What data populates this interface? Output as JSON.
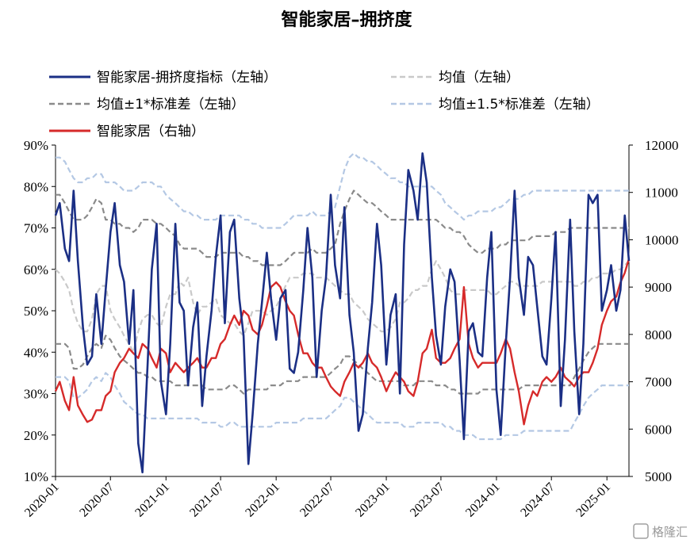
{
  "chart_data": {
    "type": "line",
    "title": "智能家居–拥挤度",
    "y_left": {
      "ticks": [
        "10%",
        "20%",
        "30%",
        "40%",
        "50%",
        "60%",
        "70%",
        "80%",
        "90%"
      ],
      "range": [
        0.1,
        0.9
      ]
    },
    "y_right": {
      "ticks": [
        "5000",
        "6000",
        "7000",
        "8000",
        "9000",
        "10000",
        "11000",
        "12000"
      ],
      "range": [
        5000,
        12000
      ]
    },
    "x_ticks": [
      "2020-01",
      "2020-07",
      "2021-01",
      "2021-07",
      "2022-01",
      "2022-07",
      "2023-01",
      "2023-07",
      "2024-01",
      "2024-07",
      "2025-01"
    ],
    "x_range": [
      "2020-01-01",
      "2025-03-15"
    ],
    "grid": false,
    "legend_position": "top",
    "series": [
      {
        "name": "智能家居-拥挤度指标（左轴）",
        "axis": "left",
        "color": "#1b2f85",
        "style": "solid",
        "x": [
          "2020-01-01",
          "2020-01-15",
          "2020-02-01",
          "2020-02-15",
          "2020-03-01",
          "2020-03-15",
          "2020-04-01",
          "2020-04-15",
          "2020-05-01",
          "2020-05-15",
          "2020-06-01",
          "2020-06-15",
          "2020-07-01",
          "2020-07-15",
          "2020-08-01",
          "2020-08-15",
          "2020-09-01",
          "2020-09-15",
          "2020-10-01",
          "2020-10-15",
          "2020-11-01",
          "2020-11-15",
          "2020-12-01",
          "2020-12-15",
          "2021-01-01",
          "2021-01-15",
          "2021-02-01",
          "2021-02-15",
          "2021-03-01",
          "2021-03-15",
          "2021-04-01",
          "2021-04-15",
          "2021-05-01",
          "2021-05-15",
          "2021-06-01",
          "2021-06-15",
          "2021-07-01",
          "2021-07-15",
          "2021-08-01",
          "2021-08-15",
          "2021-09-01",
          "2021-09-15",
          "2021-10-01",
          "2021-10-15",
          "2021-11-01",
          "2021-11-15",
          "2021-12-01",
          "2021-12-15",
          "2022-01-01",
          "2022-01-15",
          "2022-02-01",
          "2022-02-15",
          "2022-03-01",
          "2022-03-15",
          "2022-04-01",
          "2022-04-15",
          "2022-05-01",
          "2022-05-15",
          "2022-06-01",
          "2022-06-15",
          "2022-07-01",
          "2022-07-15",
          "2022-08-01",
          "2022-08-15",
          "2022-09-01",
          "2022-09-15",
          "2022-10-01",
          "2022-10-15",
          "2022-11-01",
          "2022-11-15",
          "2022-12-01",
          "2022-12-15",
          "2023-01-01",
          "2023-01-15",
          "2023-02-01",
          "2023-02-15",
          "2023-03-01",
          "2023-03-15",
          "2023-04-01",
          "2023-04-15",
          "2023-05-01",
          "2023-05-15",
          "2023-06-01",
          "2023-06-15",
          "2023-07-01",
          "2023-07-15",
          "2023-08-01",
          "2023-08-15",
          "2023-09-01",
          "2023-09-15",
          "2023-10-01",
          "2023-10-15",
          "2023-11-01",
          "2023-11-15",
          "2023-12-01",
          "2023-12-15",
          "2024-01-01",
          "2024-01-15",
          "2024-02-01",
          "2024-02-15",
          "2024-03-01",
          "2024-03-15",
          "2024-04-01",
          "2024-04-15",
          "2024-05-01",
          "2024-05-15",
          "2024-06-01",
          "2024-06-15",
          "2024-07-01",
          "2024-07-15",
          "2024-08-01",
          "2024-08-15",
          "2024-09-01",
          "2024-09-15",
          "2024-10-01",
          "2024-10-15",
          "2024-11-01",
          "2024-11-15",
          "2024-12-01",
          "2024-12-15",
          "2025-01-01",
          "2025-01-15",
          "2025-02-01",
          "2025-02-15",
          "2025-03-01",
          "2025-03-15"
        ],
        "y": [
          0.73,
          0.76,
          0.65,
          0.62,
          0.79,
          0.62,
          0.46,
          0.37,
          0.39,
          0.54,
          0.42,
          0.55,
          0.69,
          0.76,
          0.61,
          0.57,
          0.42,
          0.55,
          0.18,
          0.11,
          0.37,
          0.6,
          0.71,
          0.33,
          0.25,
          0.42,
          0.71,
          0.52,
          0.5,
          0.32,
          0.46,
          0.52,
          0.27,
          0.39,
          0.5,
          0.63,
          0.73,
          0.47,
          0.69,
          0.72,
          0.53,
          0.44,
          0.13,
          0.25,
          0.42,
          0.52,
          0.64,
          0.53,
          0.43,
          0.53,
          0.55,
          0.36,
          0.35,
          0.4,
          0.55,
          0.7,
          0.58,
          0.34,
          0.5,
          0.58,
          0.78,
          0.61,
          0.53,
          0.75,
          0.49,
          0.4,
          0.21,
          0.25,
          0.41,
          0.52,
          0.71,
          0.61,
          0.37,
          0.49,
          0.54,
          0.3,
          0.66,
          0.84,
          0.79,
          0.72,
          0.88,
          0.81,
          0.58,
          0.44,
          0.37,
          0.51,
          0.6,
          0.57,
          0.38,
          0.19,
          0.45,
          0.47,
          0.4,
          0.39,
          0.58,
          0.69,
          0.31,
          0.2,
          0.42,
          0.58,
          0.79,
          0.58,
          0.49,
          0.63,
          0.61,
          0.51,
          0.39,
          0.37,
          0.53,
          0.69,
          0.27,
          0.43,
          0.72,
          0.45,
          0.25,
          0.42,
          0.78,
          0.76,
          0.78,
          0.5,
          0.55,
          0.61,
          0.5,
          0.55,
          0.73,
          0.62
        ]
      },
      {
        "name": "均值（左轴）",
        "axis": "left",
        "color": "#c9c9c9",
        "style": "dashed",
        "y": [
          0.6,
          0.59,
          0.57,
          0.55,
          0.5,
          0.47,
          0.45,
          0.45,
          0.48,
          0.54,
          0.56,
          0.56,
          0.5,
          0.48,
          0.46,
          0.44,
          0.42,
          0.4,
          0.45,
          0.48,
          0.49,
          0.49,
          0.47,
          0.46,
          0.51,
          0.54,
          0.54,
          0.57,
          0.56,
          0.58,
          0.52,
          0.49,
          0.51,
          0.51,
          0.52,
          0.53,
          0.49,
          0.48,
          0.47,
          0.47,
          0.45,
          0.44,
          0.47,
          0.5,
          0.5,
          0.5,
          0.49,
          0.5,
          0.51,
          0.53,
          0.56,
          0.58,
          0.58,
          0.58,
          0.59,
          0.59,
          0.59,
          0.58,
          0.58,
          0.58,
          0.57,
          0.56,
          0.55,
          0.54,
          0.54,
          0.52,
          0.51,
          0.5,
          0.48,
          0.47,
          0.46,
          0.45,
          0.45,
          0.46,
          0.48,
          0.52,
          0.52,
          0.53,
          0.55,
          0.55,
          0.56,
          0.56,
          0.6,
          0.62,
          0.6,
          0.58,
          0.55,
          0.54,
          0.54,
          0.55,
          0.55,
          0.55,
          0.55,
          0.55,
          0.55,
          0.54,
          0.54,
          0.55,
          0.56,
          0.57,
          0.57,
          0.56,
          0.56,
          0.56,
          0.56,
          0.56,
          0.57,
          0.57,
          0.57,
          0.57,
          0.57,
          0.57,
          0.57,
          0.56,
          0.56,
          0.57,
          0.57,
          0.58,
          0.58,
          0.59,
          0.59,
          0.59,
          0.6,
          0.6,
          0.61,
          0.62
        ]
      },
      {
        "name": "均值±1*标准差（左轴）",
        "axis": "left",
        "color": "#8a8a8a",
        "style": "dashed",
        "y_upper": [
          0.78,
          0.78,
          0.76,
          0.74,
          0.72,
          0.72,
          0.72,
          0.73,
          0.75,
          0.77,
          0.76,
          0.72,
          0.72,
          0.71,
          0.71,
          0.7,
          0.7,
          0.69,
          0.7,
          0.72,
          0.72,
          0.72,
          0.71,
          0.71,
          0.7,
          0.69,
          0.68,
          0.66,
          0.65,
          0.65,
          0.65,
          0.65,
          0.64,
          0.63,
          0.63,
          0.63,
          0.64,
          0.64,
          0.64,
          0.64,
          0.64,
          0.63,
          0.63,
          0.62,
          0.62,
          0.61,
          0.61,
          0.61,
          0.61,
          0.61,
          0.62,
          0.63,
          0.64,
          0.64,
          0.64,
          0.64,
          0.65,
          0.64,
          0.64,
          0.64,
          0.65,
          0.66,
          0.71,
          0.74,
          0.77,
          0.79,
          0.78,
          0.77,
          0.76,
          0.76,
          0.75,
          0.74,
          0.73,
          0.72,
          0.72,
          0.72,
          0.72,
          0.72,
          0.72,
          0.72,
          0.72,
          0.72,
          0.72,
          0.72,
          0.71,
          0.7,
          0.7,
          0.69,
          0.69,
          0.68,
          0.66,
          0.65,
          0.64,
          0.64,
          0.65,
          0.65,
          0.65,
          0.66,
          0.66,
          0.67,
          0.67,
          0.67,
          0.67,
          0.67,
          0.68,
          0.68,
          0.68,
          0.68,
          0.68,
          0.69,
          0.69,
          0.69,
          0.7,
          0.7,
          0.7,
          0.7,
          0.7,
          0.7,
          0.7,
          0.7,
          0.7,
          0.7,
          0.7,
          0.7,
          0.7,
          0.7
        ],
        "y_lower": [
          0.42,
          0.42,
          0.42,
          0.41,
          0.36,
          0.36,
          0.37,
          0.39,
          0.41,
          0.42,
          0.41,
          0.44,
          0.43,
          0.41,
          0.39,
          0.38,
          0.37,
          0.36,
          0.35,
          0.35,
          0.34,
          0.34,
          0.33,
          0.33,
          0.33,
          0.33,
          0.32,
          0.32,
          0.32,
          0.32,
          0.32,
          0.32,
          0.32,
          0.31,
          0.31,
          0.31,
          0.31,
          0.31,
          0.32,
          0.32,
          0.31,
          0.3,
          0.31,
          0.31,
          0.31,
          0.31,
          0.31,
          0.32,
          0.32,
          0.32,
          0.33,
          0.33,
          0.33,
          0.33,
          0.34,
          0.34,
          0.34,
          0.34,
          0.34,
          0.34,
          0.35,
          0.36,
          0.37,
          0.39,
          0.39,
          0.38,
          0.37,
          0.36,
          0.35,
          0.34,
          0.33,
          0.33,
          0.33,
          0.33,
          0.33,
          0.33,
          0.32,
          0.32,
          0.32,
          0.33,
          0.33,
          0.33,
          0.33,
          0.32,
          0.32,
          0.32,
          0.31,
          0.31,
          0.3,
          0.3,
          0.3,
          0.3,
          0.3,
          0.31,
          0.31,
          0.31,
          0.31,
          0.31,
          0.31,
          0.31,
          0.31,
          0.31,
          0.32,
          0.32,
          0.32,
          0.32,
          0.32,
          0.32,
          0.32,
          0.32,
          0.32,
          0.32,
          0.32,
          0.34,
          0.36,
          0.38,
          0.4,
          0.41,
          0.42,
          0.42,
          0.42,
          0.42,
          0.42,
          0.42,
          0.42,
          0.42
        ]
      },
      {
        "name": "均值±1.5*标准差（左轴）",
        "axis": "left",
        "color": "#b4c8e4",
        "style": "dashed",
        "y_upper": [
          0.87,
          0.87,
          0.86,
          0.84,
          0.82,
          0.81,
          0.81,
          0.82,
          0.82,
          0.83,
          0.83,
          0.81,
          0.81,
          0.81,
          0.8,
          0.79,
          0.79,
          0.79,
          0.8,
          0.81,
          0.81,
          0.81,
          0.8,
          0.8,
          0.78,
          0.77,
          0.76,
          0.75,
          0.74,
          0.74,
          0.73,
          0.73,
          0.72,
          0.72,
          0.72,
          0.72,
          0.73,
          0.73,
          0.73,
          0.73,
          0.73,
          0.72,
          0.72,
          0.71,
          0.71,
          0.7,
          0.7,
          0.7,
          0.7,
          0.7,
          0.71,
          0.72,
          0.73,
          0.73,
          0.73,
          0.73,
          0.74,
          0.73,
          0.73,
          0.73,
          0.74,
          0.75,
          0.8,
          0.84,
          0.87,
          0.88,
          0.87,
          0.87,
          0.86,
          0.86,
          0.85,
          0.84,
          0.83,
          0.82,
          0.82,
          0.81,
          0.81,
          0.8,
          0.8,
          0.8,
          0.8,
          0.8,
          0.8,
          0.79,
          0.78,
          0.76,
          0.75,
          0.74,
          0.73,
          0.72,
          0.73,
          0.73,
          0.74,
          0.74,
          0.74,
          0.74,
          0.75,
          0.75,
          0.76,
          0.77,
          0.77,
          0.77,
          0.78,
          0.78,
          0.79,
          0.79,
          0.79,
          0.79,
          0.79,
          0.79,
          0.79,
          0.79,
          0.79,
          0.79,
          0.79,
          0.79,
          0.79,
          0.79,
          0.79,
          0.79,
          0.79,
          0.79,
          0.79,
          0.79,
          0.79,
          0.79
        ],
        "y_lower": [
          0.34,
          0.34,
          0.34,
          0.33,
          0.29,
          0.29,
          0.3,
          0.31,
          0.33,
          0.34,
          0.33,
          0.35,
          0.34,
          0.32,
          0.3,
          0.28,
          0.27,
          0.26,
          0.25,
          0.25,
          0.24,
          0.24,
          0.24,
          0.24,
          0.24,
          0.24,
          0.24,
          0.24,
          0.24,
          0.24,
          0.24,
          0.24,
          0.23,
          0.23,
          0.23,
          0.23,
          0.22,
          0.22,
          0.23,
          0.23,
          0.22,
          0.22,
          0.22,
          0.22,
          0.22,
          0.22,
          0.22,
          0.22,
          0.23,
          0.23,
          0.23,
          0.23,
          0.23,
          0.23,
          0.24,
          0.24,
          0.24,
          0.24,
          0.24,
          0.24,
          0.25,
          0.26,
          0.27,
          0.29,
          0.29,
          0.28,
          0.27,
          0.26,
          0.25,
          0.24,
          0.23,
          0.23,
          0.23,
          0.23,
          0.23,
          0.23,
          0.22,
          0.22,
          0.22,
          0.23,
          0.23,
          0.23,
          0.23,
          0.23,
          0.23,
          0.22,
          0.22,
          0.21,
          0.21,
          0.2,
          0.2,
          0.2,
          0.19,
          0.19,
          0.19,
          0.19,
          0.19,
          0.19,
          0.2,
          0.2,
          0.2,
          0.2,
          0.21,
          0.21,
          0.21,
          0.21,
          0.21,
          0.21,
          0.21,
          0.21,
          0.21,
          0.21,
          0.21,
          0.23,
          0.25,
          0.27,
          0.29,
          0.3,
          0.31,
          0.32,
          0.32,
          0.32,
          0.32,
          0.32,
          0.32,
          0.32
        ]
      },
      {
        "name": "智能家居（右轴）",
        "axis": "right",
        "color": "#d62a2a",
        "style": "solid",
        "y": [
          6800,
          7000,
          6600,
          6400,
          7100,
          6500,
          6300,
          6150,
          6200,
          6400,
          6400,
          6700,
          6800,
          7200,
          7400,
          7500,
          7700,
          7600,
          7500,
          7800,
          7700,
          7500,
          7300,
          7700,
          7600,
          7200,
          7400,
          7300,
          7200,
          7300,
          7400,
          7500,
          7300,
          7300,
          7500,
          7500,
          7800,
          7900,
          8200,
          8400,
          8200,
          8500,
          8400,
          8100,
          8000,
          8200,
          8600,
          9000,
          9100,
          9000,
          8700,
          8500,
          8400,
          8000,
          7600,
          7600,
          7400,
          7300,
          7300,
          7100,
          6900,
          6800,
          6700,
          7000,
          7200,
          7400,
          7300,
          7400,
          7600,
          7400,
          7300,
          7100,
          6800,
          7000,
          7200,
          7100,
          7000,
          6800,
          6700,
          7000,
          7600,
          7700,
          8100,
          7500,
          7400,
          7400,
          7500,
          7700,
          7900,
          9000,
          7800,
          7500,
          7300,
          7400,
          7400,
          7400,
          7400,
          7600,
          7900,
          7700,
          7200,
          6800,
          6100,
          6500,
          6800,
          6700,
          7000,
          7100,
          7000,
          7100,
          7300,
          7100,
          7000,
          6900,
          7100,
          7200,
          7200,
          7400,
          7700,
          8200,
          8500,
          8700,
          8800,
          9100,
          9300,
          9600
        ]
      }
    ]
  },
  "watermark": "格隆汇"
}
